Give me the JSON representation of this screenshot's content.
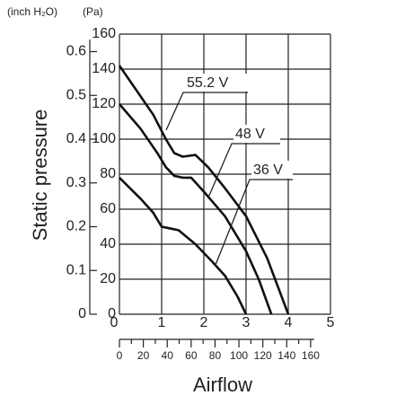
{
  "chart_data": {
    "type": "line",
    "y_label": "Static pressure",
    "x_label": "Airflow",
    "y_unit": "(Pa)",
    "y2_unit": "(inch H₂O)",
    "xlim": [
      0,
      5
    ],
    "xticks": [
      0,
      1,
      2,
      3,
      4,
      5
    ],
    "ylim": [
      0,
      160
    ],
    "yticks": [
      0,
      20,
      40,
      60,
      80,
      100,
      120,
      140,
      160
    ],
    "y2lim": [
      0,
      0.64
    ],
    "y2ticks": [
      0,
      0.1,
      0.2,
      0.3,
      0.4,
      0.5,
      0.6
    ],
    "x2lim": [
      0,
      176.6
    ],
    "x2ticks": [
      0,
      20,
      40,
      60,
      80,
      100,
      120,
      140,
      160
    ],
    "x2minor_ticks": [
      10,
      30,
      50,
      70,
      90,
      110,
      130,
      150
    ],
    "grid": true,
    "color": "#111",
    "series": [
      {
        "name": "55.2 V",
        "x": [
          0,
          0.4,
          0.8,
          1.1,
          1.3,
          1.5,
          1.8,
          2.1,
          2.5,
          3,
          3.5,
          4
        ],
        "values": [
          142,
          128,
          114,
          100,
          92,
          90,
          91,
          84,
          72,
          56,
          32,
          0
        ]
      },
      {
        "name": "48 V",
        "x": [
          0,
          0.5,
          0.9,
          1.1,
          1.3,
          1.5,
          1.7,
          2,
          2.5,
          3,
          3.3,
          3.6
        ],
        "values": [
          120,
          106,
          92,
          84,
          79,
          78,
          78,
          70,
          56,
          36,
          20,
          0
        ]
      },
      {
        "name": "36 V",
        "x": [
          0,
          0.5,
          0.8,
          1,
          1.2,
          1.4,
          1.8,
          2.2,
          2.5,
          2.8,
          3
        ],
        "values": [
          78,
          66,
          58,
          50,
          49,
          48,
          40,
          30,
          22,
          10,
          0
        ]
      }
    ]
  }
}
